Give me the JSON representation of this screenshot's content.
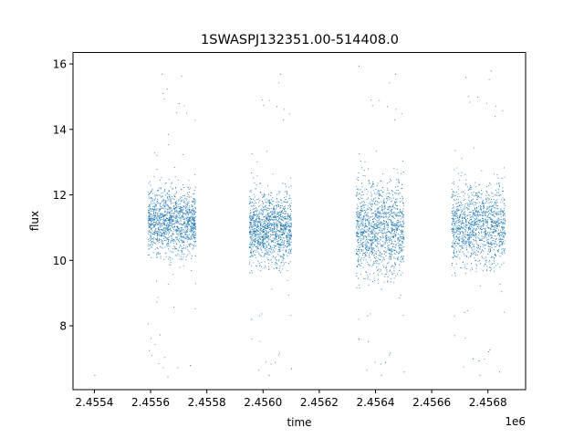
{
  "chart_data": {
    "type": "scatter",
    "title": "1SWASPJ132351.00-514408.0",
    "xlabel": "time",
    "ylabel": "flux",
    "x_offset_label": "1e6",
    "xlim": [
      2455324,
      2456934
    ],
    "ylim": [
      6.05,
      16.35
    ],
    "xticks": [
      2455400,
      2455600,
      2455800,
      2456000,
      2456200,
      2456400,
      2456600,
      2456800
    ],
    "xtick_labels": [
      "2.4554",
      "2.4556",
      "2.4558",
      "2.4560",
      "2.4562",
      "2.4564",
      "2.4566",
      "2.4568"
    ],
    "yticks": [
      8,
      10,
      12,
      14,
      16
    ],
    "ytick_labels": [
      "8",
      "10",
      "12",
      "14",
      "16"
    ],
    "grid": false,
    "marker_color": "#1f77b4",
    "series": [
      {
        "segments": [
          {
            "x_start": 2455590,
            "x_end": 2455760,
            "y_center": 11.2,
            "y_spread": 0.7
          },
          {
            "x_start": 2455950,
            "x_end": 2456100,
            "y_center": 11.0,
            "y_spread": 0.75
          },
          {
            "x_start": 2456330,
            "x_end": 2456500,
            "y_center": 11.0,
            "y_spread": 1.0
          },
          {
            "x_start": 2456670,
            "x_end": 2456860,
            "y_center": 11.1,
            "y_spread": 0.85
          }
        ],
        "outliers": [
          [
            2455400,
            6.5
          ],
          [
            2455660,
            6.45
          ],
          [
            2455700,
            14.8
          ],
          [
            2455740,
            6.8
          ],
          [
            2456020,
            6.5
          ],
          [
            2456060,
            15.7
          ],
          [
            2456100,
            6.7
          ],
          [
            2456340,
            15.95
          ],
          [
            2456420,
            6.5
          ],
          [
            2456470,
            15.7
          ],
          [
            2456500,
            6.6
          ],
          [
            2456720,
            15.6
          ],
          [
            2456770,
            6.5
          ],
          [
            2456810,
            15.8
          ],
          [
            2456840,
            6.6
          ],
          [
            2455640,
            15.7
          ]
        ]
      }
    ]
  }
}
